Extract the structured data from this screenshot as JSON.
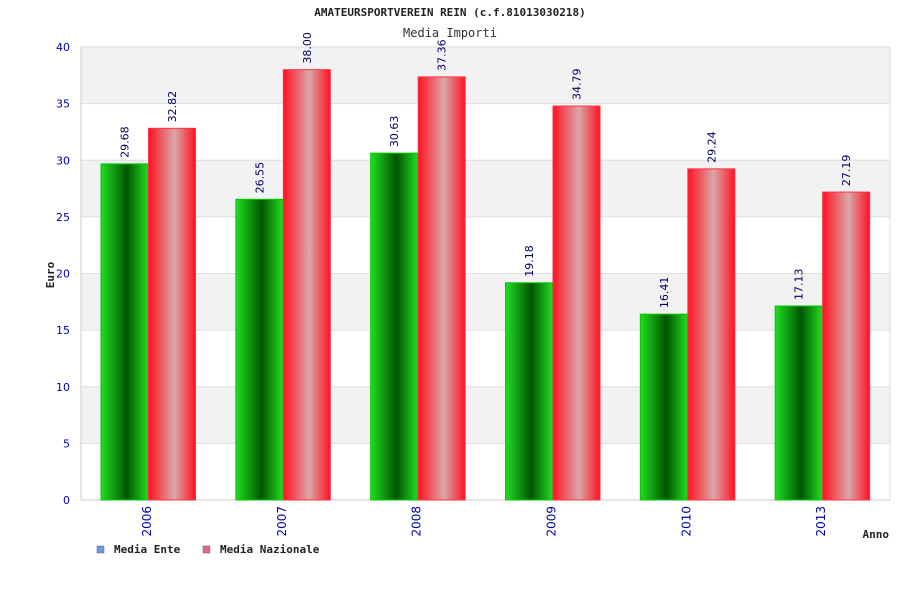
{
  "chart_data": {
    "type": "bar",
    "title": "AMATEURSPORTVEREIN REIN (c.f.81013030218)",
    "subtitle": "Media Importi",
    "xlabel": "Anno",
    "ylabel": "Euro",
    "ylim": [
      0,
      40
    ],
    "yticks": [
      0,
      5,
      10,
      15,
      20,
      25,
      30,
      35,
      40
    ],
    "grid": true,
    "legend_position": "bottom-left",
    "categories": [
      "2006",
      "2007",
      "2008",
      "2009",
      "2010",
      "2013"
    ],
    "series": [
      {
        "name": "Media Ente",
        "values": [
          29.68,
          26.55,
          30.63,
          19.18,
          16.41,
          17.13
        ],
        "labels": [
          "29.68",
          "26.55",
          "30.63",
          "19.18",
          "16.41",
          "17.13"
        ],
        "color": "#00b400",
        "legend_color": "#6699dd"
      },
      {
        "name": "Media Nazionale",
        "values": [
          32.82,
          38.0,
          37.36,
          34.79,
          29.24,
          27.19
        ],
        "labels": [
          "32.82",
          "38.00",
          "37.36",
          "34.79",
          "29.24",
          "27.19"
        ],
        "color": "#ee1122",
        "legend_color": "#dd6699"
      }
    ],
    "colors": {
      "plot_bg_band": "#f2f2f2",
      "grid_line": "#dddddd",
      "axis_text": "#0000aa",
      "value_label": "#000066",
      "title_text": "#222222"
    }
  }
}
